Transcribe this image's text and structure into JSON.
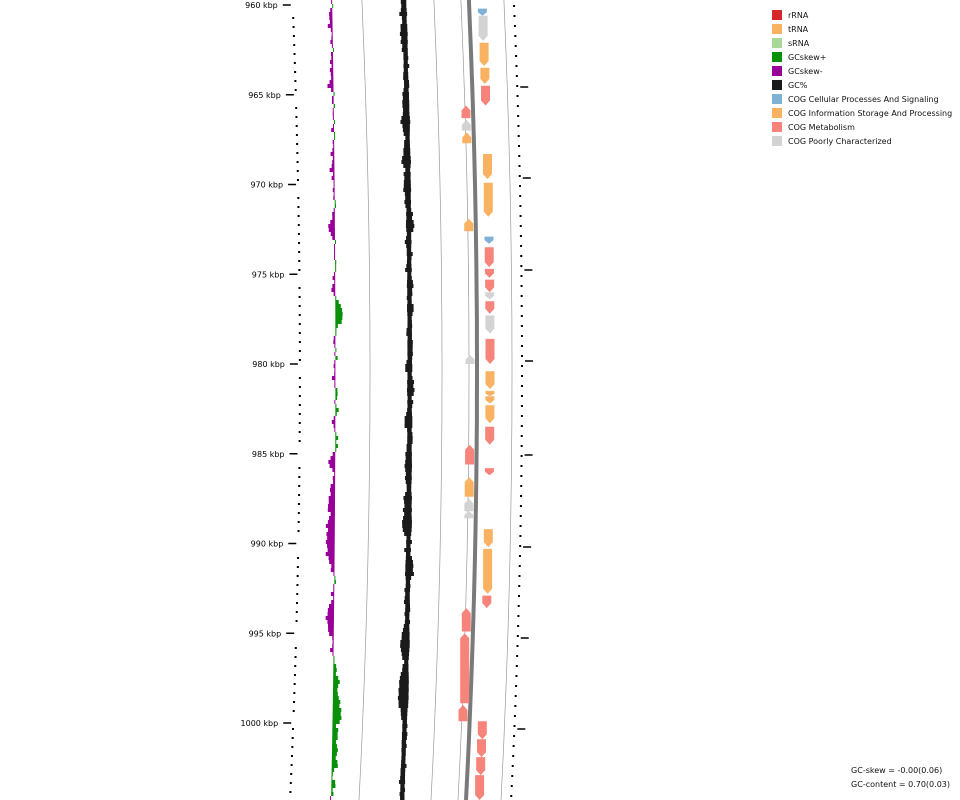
{
  "colors": {
    "rRNA": "#d62728",
    "tRNA": "#f9b262",
    "sRNA": "#a8d99a",
    "GCskew_pos": "#0a8f0a",
    "GCskew_neg": "#990099",
    "GC": "#1a1a1a",
    "COG_cellular": "#7fb0d5",
    "COG_information": "#f9b262",
    "COG_metabolism": "#f7847a",
    "COG_poorly": "#d3d3d3"
  },
  "legend": [
    {
      "key": "rRNA",
      "label": "rRNA"
    },
    {
      "key": "tRNA",
      "label": "tRNA"
    },
    {
      "key": "sRNA",
      "label": "sRNA"
    },
    {
      "key": "GCskew_pos",
      "label": "GCskew+"
    },
    {
      "key": "GCskew_neg",
      "label": "GCskew-"
    },
    {
      "key": "GC",
      "label": "GC%"
    },
    {
      "key": "COG_cellular",
      "label": "COG Cellular Processes And Signaling"
    },
    {
      "key": "COG_information",
      "label": "COG Information Storage And Processing"
    },
    {
      "key": "COG_metabolism",
      "label": "COG Metabolism"
    },
    {
      "key": "COG_poorly",
      "label": "COG Poorly Characterized"
    }
  ],
  "stats": {
    "gc_skew": "GC-skew = -0.00(0.06)",
    "gc_content": "GC-content = 0.70(0.03)"
  },
  "ticks": [
    "960 kbp",
    "965 kbp",
    "970 kbp",
    "975 kbp",
    "980 kbp",
    "985 kbp",
    "990 kbp",
    "995 kbp",
    "1000 kbp"
  ],
  "features": [
    {
      "track": "outer",
      "start": 960.2,
      "end": 960.6,
      "cat": "COG_cellular",
      "dir": -1
    },
    {
      "track": "outer",
      "start": 960.6,
      "end": 962.0,
      "cat": "COG_poorly",
      "dir": -1
    },
    {
      "track": "outer",
      "start": 962.1,
      "end": 963.4,
      "cat": "COG_information",
      "dir": -1
    },
    {
      "track": "outer",
      "start": 963.5,
      "end": 964.4,
      "cat": "COG_information",
      "dir": -1
    },
    {
      "track": "outer",
      "start": 964.5,
      "end": 965.6,
      "cat": "COG_metabolism",
      "dir": -1
    },
    {
      "track": "inner",
      "start": 965.6,
      "end": 966.3,
      "cat": "COG_metabolism",
      "dir": 1
    },
    {
      "track": "inner",
      "start": 966.4,
      "end": 967.0,
      "cat": "COG_poorly",
      "dir": 1
    },
    {
      "track": "inner",
      "start": 967.1,
      "end": 967.7,
      "cat": "COG_information",
      "dir": 1
    },
    {
      "track": "outer",
      "start": 968.3,
      "end": 969.7,
      "cat": "COG_information",
      "dir": -1
    },
    {
      "track": "outer",
      "start": 969.9,
      "end": 971.8,
      "cat": "COG_information",
      "dir": -1
    },
    {
      "track": "inner",
      "start": 971.9,
      "end": 972.6,
      "cat": "COG_information",
      "dir": 1
    },
    {
      "track": "outer",
      "start": 972.9,
      "end": 973.3,
      "cat": "COG_cellular",
      "dir": -1
    },
    {
      "track": "outer",
      "start": 973.5,
      "end": 974.6,
      "cat": "COG_metabolism",
      "dir": -1
    },
    {
      "track": "outer",
      "start": 974.7,
      "end": 975.2,
      "cat": "COG_metabolism",
      "dir": -1
    },
    {
      "track": "outer",
      "start": 975.3,
      "end": 976.0,
      "cat": "COG_metabolism",
      "dir": -1
    },
    {
      "track": "outer",
      "start": 976.0,
      "end": 976.4,
      "cat": "COG_poorly",
      "dir": -1
    },
    {
      "track": "outer",
      "start": 976.5,
      "end": 977.2,
      "cat": "COG_metabolism",
      "dir": -1
    },
    {
      "track": "outer",
      "start": 977.3,
      "end": 978.3,
      "cat": "COG_poorly",
      "dir": -1
    },
    {
      "track": "outer",
      "start": 978.6,
      "end": 980.0,
      "cat": "COG_metabolism",
      "dir": -1
    },
    {
      "track": "inner",
      "start": 979.5,
      "end": 980.0,
      "cat": "COG_poorly",
      "dir": 1
    },
    {
      "track": "outer",
      "start": 980.4,
      "end": 981.4,
      "cat": "COG_information",
      "dir": -1
    },
    {
      "track": "outer",
      "start": 981.5,
      "end": 981.8,
      "cat": "COG_information",
      "dir": -1
    },
    {
      "track": "outer",
      "start": 981.8,
      "end": 982.2,
      "cat": "COG_information",
      "dir": -1
    },
    {
      "track": "outer",
      "start": 982.3,
      "end": 983.3,
      "cat": "COG_information",
      "dir": -1
    },
    {
      "track": "outer",
      "start": 983.5,
      "end": 984.5,
      "cat": "COG_metabolism",
      "dir": -1
    },
    {
      "track": "inner",
      "start": 984.5,
      "end": 985.6,
      "cat": "COG_metabolism",
      "dir": 1
    },
    {
      "track": "outer",
      "start": 985.8,
      "end": 986.2,
      "cat": "COG_metabolism",
      "dir": -1
    },
    {
      "track": "inner",
      "start": 986.3,
      "end": 987.4,
      "cat": "COG_information",
      "dir": 1
    },
    {
      "track": "inner",
      "start": 987.5,
      "end": 988.2,
      "cat": "COG_poorly",
      "dir": 1
    },
    {
      "track": "inner",
      "start": 988.2,
      "end": 988.6,
      "cat": "COG_poorly",
      "dir": 1
    },
    {
      "track": "outer",
      "start": 989.2,
      "end": 990.2,
      "cat": "COG_information",
      "dir": -1
    },
    {
      "track": "outer",
      "start": 990.3,
      "end": 992.8,
      "cat": "COG_information",
      "dir": -1
    },
    {
      "track": "outer",
      "start": 992.9,
      "end": 993.6,
      "cat": "COG_metabolism",
      "dir": -1
    },
    {
      "track": "inner",
      "start": 993.6,
      "end": 994.9,
      "cat": "COG_metabolism",
      "dir": 1
    },
    {
      "track": "inner",
      "start": 995.0,
      "end": 998.9,
      "cat": "COG_metabolism",
      "dir": 1
    },
    {
      "track": "inner",
      "start": 999.0,
      "end": 999.9,
      "cat": "COG_metabolism",
      "dir": 1
    },
    {
      "track": "outer",
      "start": 999.9,
      "end": 1000.9,
      "cat": "COG_metabolism",
      "dir": -1
    },
    {
      "track": "outer",
      "start": 1000.9,
      "end": 1001.9,
      "cat": "COG_metabolism",
      "dir": -1
    },
    {
      "track": "outer",
      "start": 1001.9,
      "end": 1002.9,
      "cat": "COG_metabolism",
      "dir": -1
    },
    {
      "track": "outer",
      "start": 1002.9,
      "end": 1004.3,
      "cat": "COG_metabolism",
      "dir": -1
    }
  ]
}
